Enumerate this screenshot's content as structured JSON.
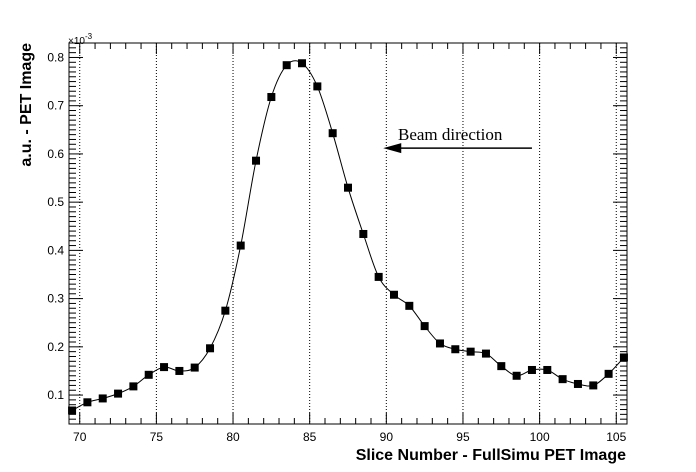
{
  "chart_data": {
    "type": "line",
    "xlabel": "Slice Number - FullSimu PET Image",
    "ylabel": "a.u. - PET Image",
    "y_exponent_label": "×10",
    "y_exponent_power": "-3",
    "xlim": [
      69.3,
      105.7
    ],
    "ylim": [
      0.04,
      0.83
    ],
    "x_ticks": [
      70,
      75,
      80,
      85,
      90,
      95,
      100,
      105
    ],
    "y_ticks": [
      0.1,
      0.2,
      0.3,
      0.4,
      0.5,
      0.6,
      0.7,
      0.8
    ],
    "x_tick_labels": [
      "70",
      "75",
      "80",
      "85",
      "90",
      "95",
      "100",
      "105"
    ],
    "y_tick_labels": [
      "0.1",
      "0.2",
      "0.3",
      "0.4",
      "0.5",
      "0.6",
      "0.7",
      "0.8"
    ],
    "grid": "x-dotted",
    "annotation": {
      "text": "Beam direction",
      "arrow_from_x": 99.5,
      "arrow_to_x": 89.8,
      "arrow_y": 0.612,
      "direction": "left"
    },
    "series": [
      {
        "marker": "square",
        "x": [
          69.5,
          70.5,
          71.5,
          72.5,
          73.5,
          74.5,
          75.5,
          76.5,
          77.5,
          78.5,
          79.5,
          80.5,
          81.5,
          82.5,
          83.5,
          84.5,
          85.5,
          86.5,
          87.5,
          88.5,
          89.5,
          90.5,
          91.5,
          92.5,
          93.5,
          94.5,
          95.5,
          96.5,
          97.5,
          98.5,
          99.5,
          100.5,
          101.5,
          102.5,
          103.5,
          104.5,
          105.5
        ],
        "y": [
          0.068,
          0.085,
          0.093,
          0.103,
          0.118,
          0.142,
          0.158,
          0.15,
          0.157,
          0.197,
          0.275,
          0.41,
          0.586,
          0.718,
          0.784,
          0.788,
          0.74,
          0.643,
          0.53,
          0.434,
          0.345,
          0.308,
          0.285,
          0.243,
          0.207,
          0.195,
          0.19,
          0.186,
          0.16,
          0.14,
          0.152,
          0.152,
          0.133,
          0.123,
          0.12,
          0.144,
          0.178
        ]
      }
    ]
  }
}
